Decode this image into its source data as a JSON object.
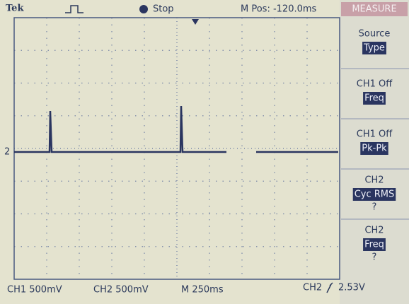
{
  "header": {
    "brand": "Tek",
    "status": "Stop",
    "position": "M Pos: -120.0ms",
    "menu_title": "MEASURE"
  },
  "menu": [
    {
      "label": "Source",
      "value": "Type"
    },
    {
      "label": "CH1 Off",
      "value": "Freq"
    },
    {
      "label": "CH1 Off",
      "value": "Pk-Pk"
    },
    {
      "label": "CH2",
      "value": "Cyc RMS",
      "reading": "?"
    },
    {
      "label": "CH2",
      "value": "Freq",
      "reading": "?"
    }
  ],
  "footer": {
    "ch1": "CH1 500mV",
    "ch2": "CH2 500mV",
    "timebase": "M 250ms",
    "trigger_source": "CH2",
    "trigger_level": "2.53V"
  },
  "marker": "2"
}
